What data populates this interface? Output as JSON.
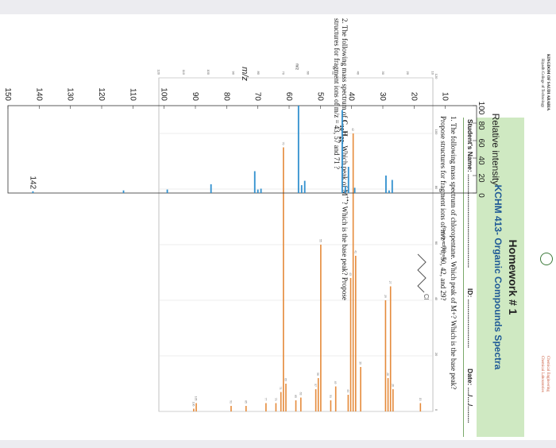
{
  "header": {
    "university_line1": "KINGDOM OF SAUDI ARABIA",
    "university_line2": "Riyadh College of Technology",
    "dept_line1": "Chemical Engineering",
    "dept_line2": "Chemical Laboratories",
    "homework_title": "Homework # 1",
    "course_title": "KCHM 413- Organic Compounds Spectra",
    "student_label": "Student's Name: ..................................................",
    "id_label": "ID: ..........................",
    "date_label": "Date: ..../..../........."
  },
  "question1": {
    "line1": "1. The following mass spectrum of chloropentane. Which peak of M+? Which is the base peak?",
    "line2": "Propose structures for fragment ions of m/z =70, 50, 42, and 29?",
    "structure_label": "Cl"
  },
  "question2": {
    "line1": "2. The following mass spectrum of C10H22. Which peak of M+? Which is the base peak? Propose",
    "line2": "structures for fragment ions of m/z = 43, 57 and 71 ?"
  },
  "colors": {
    "header_band": "#cfe9c2",
    "course_title": "#1f5a96",
    "spectrum1_bars": "#e58a3a",
    "spectrum2_bars": "#2f8fce"
  },
  "chart_data": [
    {
      "type": "bar",
      "ylabel": "Relative Intensity",
      "xlabel": "m/z",
      "xlim": [
        10,
        120
      ],
      "ylim": [
        0,
        120
      ],
      "x_ticks": [
        10,
        20,
        30,
        40,
        50,
        60,
        70,
        80,
        90,
        100,
        110,
        120
      ],
      "y_ticks": [
        0,
        20,
        40,
        60,
        80,
        100,
        120
      ],
      "x": [
        15,
        26,
        27,
        28,
        29,
        39,
        41,
        42,
        43,
        44,
        49,
        51,
        55,
        56,
        57,
        63,
        65,
        69,
        70,
        71,
        73,
        77,
        85,
        91,
        105,
        106
      ],
      "values": [
        3,
        8,
        45,
        12,
        40,
        16,
        56,
        100,
        48,
        6,
        9,
        4,
        60,
        12,
        8,
        5,
        4,
        10,
        95,
        7,
        3,
        3,
        2,
        2,
        3,
        1
      ]
    },
    {
      "type": "bar",
      "ylabel": "Relative intensity",
      "xlabel": "m/z",
      "xlim": [
        0,
        150
      ],
      "ylim": [
        0,
        100
      ],
      "x_ticks": [
        10,
        20,
        30,
        40,
        50,
        60,
        70,
        80,
        90,
        100,
        110,
        120,
        130,
        140,
        150
      ],
      "y_ticks": [
        0,
        20,
        40,
        60,
        80,
        100
      ],
      "annotation": "142",
      "x": [
        27,
        28,
        29,
        39,
        41,
        42,
        43,
        55,
        56,
        57,
        69,
        70,
        71,
        85,
        99,
        113,
        142
      ],
      "values": [
        15,
        3,
        20,
        6,
        30,
        8,
        95,
        14,
        9,
        100,
        5,
        4,
        25,
        10,
        4,
        3,
        2
      ]
    }
  ]
}
